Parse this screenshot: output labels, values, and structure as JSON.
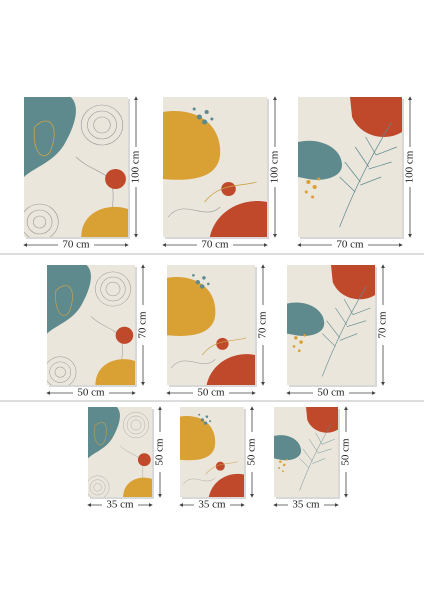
{
  "rows": [
    {
      "width": "70 cm",
      "height": "100 cm"
    },
    {
      "width": "50 cm",
      "height": "70 cm"
    },
    {
      "width": "35 cm",
      "height": "50 cm"
    }
  ]
}
